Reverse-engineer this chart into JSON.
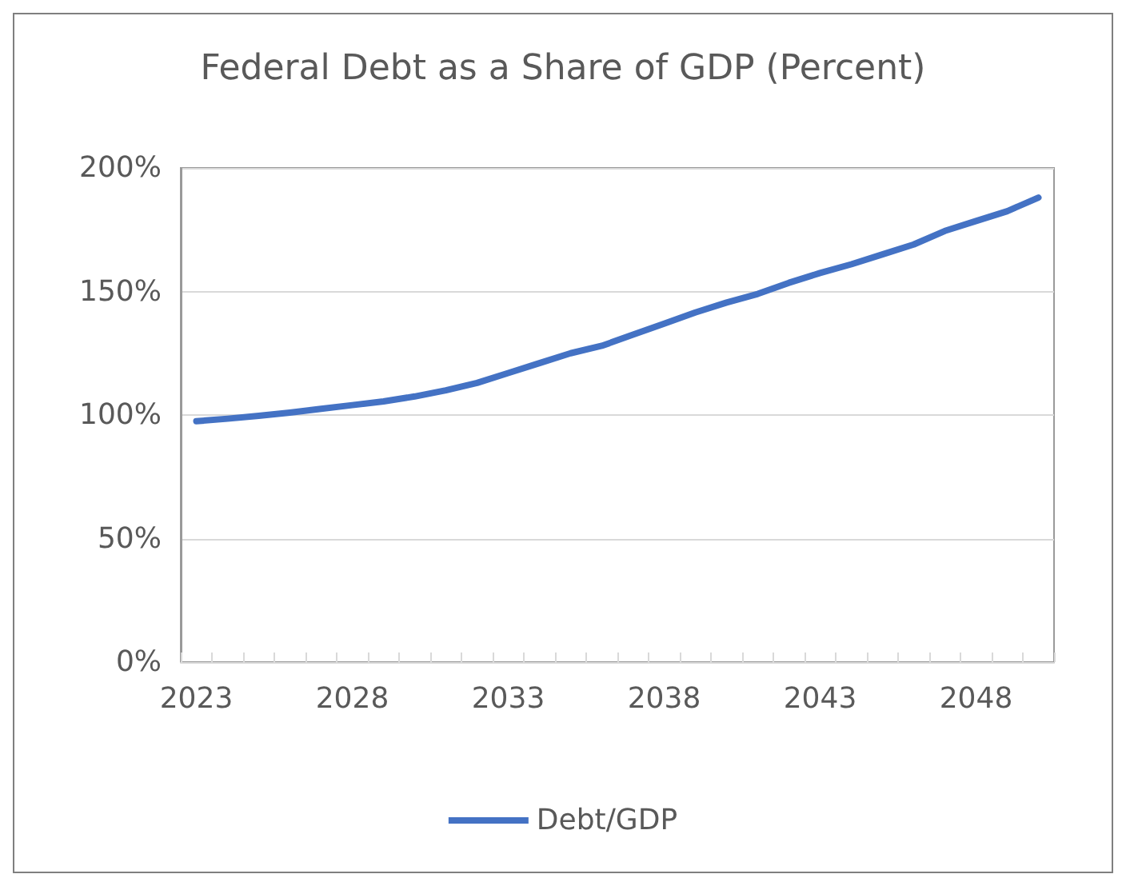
{
  "chart_data": {
    "type": "line",
    "title": "Federal Debt as a Share of GDP (Percent)",
    "categories": [
      "2023",
      null,
      null,
      null,
      null,
      "2028",
      null,
      null,
      null,
      null,
      "2033",
      null,
      null,
      null,
      null,
      "2038",
      null,
      null,
      null,
      null,
      "2043",
      null,
      null,
      null,
      null,
      "2048",
      null,
      null
    ],
    "series": [
      {
        "name": "Debt/GDP",
        "color": "#4472c4",
        "values": [
          97.5,
          98.5,
          99.7,
          101,
          102.5,
          104,
          105.5,
          107.5,
          110,
          113,
          117,
          121,
          125,
          128,
          132.5,
          137,
          141.5,
          145.5,
          149,
          153.5,
          157.5,
          161,
          165,
          169,
          174.5,
          178.5,
          182.5,
          188
        ]
      }
    ],
    "ylim": [
      0,
      200
    ],
    "yticks": [
      {
        "value": 0,
        "label": "0%"
      },
      {
        "value": 50,
        "label": "50%"
      },
      {
        "value": 100,
        "label": "100%"
      },
      {
        "value": 150,
        "label": "150%"
      },
      {
        "value": 200,
        "label": "200%"
      }
    ],
    "grid": "y",
    "legend": "bottom",
    "marker": "none",
    "line_style": "solid"
  }
}
